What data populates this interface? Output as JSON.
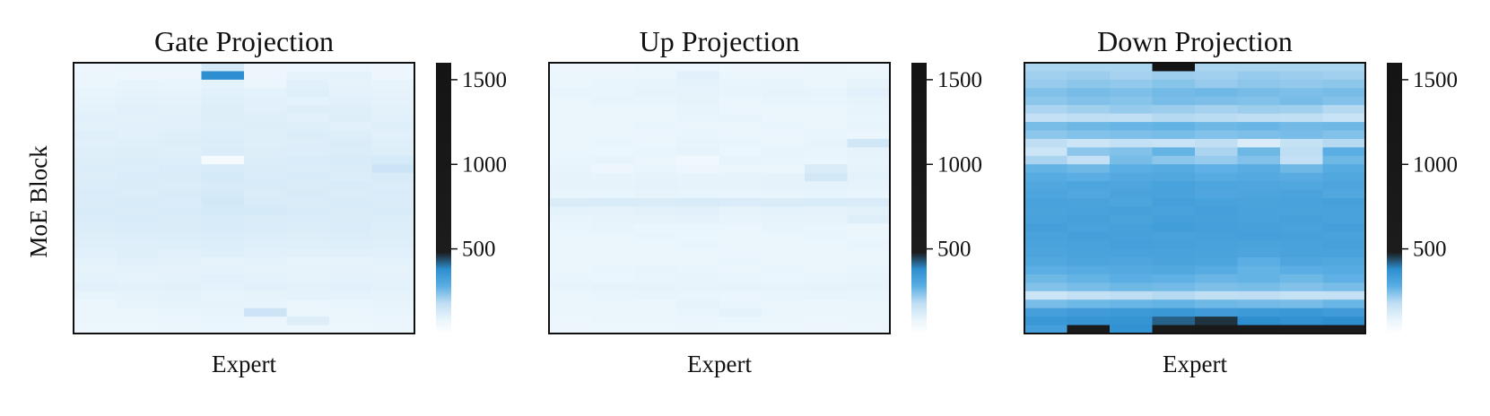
{
  "ylabel": "MoE Block",
  "colormap": {
    "stops": [
      {
        "value": 0,
        "color": "#ffffff"
      },
      {
        "value": 80,
        "color": "#eaf5fc"
      },
      {
        "value": 180,
        "color": "#bfdef3"
      },
      {
        "value": 280,
        "color": "#5aaee3"
      },
      {
        "value": 380,
        "color": "#2e8fd0"
      },
      {
        "value": 480,
        "color": "#1c1c1c"
      },
      {
        "value": 1600,
        "color": "#141414"
      }
    ]
  },
  "chart_data": [
    {
      "type": "heatmap",
      "title": "Gate Projection",
      "xlabel": "Expert",
      "ylabel": "MoE Block",
      "n_experts": 8,
      "n_blocks": 32,
      "colorbar": {
        "ticks": [
          500,
          1000,
          1500
        ],
        "range": [
          0,
          1600
        ]
      },
      "values": [
        [
          70,
          80,
          75,
          130,
          72,
          70,
          78,
          70
        ],
        [
          75,
          72,
          70,
          380,
          70,
          90,
          95,
          72
        ],
        [
          80,
          85,
          82,
          95,
          80,
          100,
          88,
          85
        ],
        [
          85,
          88,
          90,
          100,
          95,
          105,
          92,
          90
        ],
        [
          90,
          95,
          92,
          105,
          100,
          95,
          100,
          92
        ],
        [
          95,
          100,
          98,
          110,
          102,
          110,
          105,
          98
        ],
        [
          100,
          98,
          100,
          110,
          105,
          100,
          110,
          100
        ],
        [
          98,
          102,
          100,
          108,
          110,
          105,
          100,
          105
        ],
        [
          105,
          100,
          108,
          112,
          105,
          115,
          110,
          100
        ],
        [
          100,
          105,
          110,
          115,
          108,
          110,
          120,
          105
        ],
        [
          108,
          110,
          105,
          118,
          110,
          112,
          115,
          110
        ],
        [
          110,
          115,
          112,
          40,
          115,
          118,
          125,
          130
        ],
        [
          115,
          112,
          118,
          125,
          120,
          115,
          120,
          150
        ],
        [
          110,
          118,
          120,
          130,
          118,
          125,
          115,
          125
        ],
        [
          115,
          120,
          115,
          125,
          122,
          120,
          125,
          115
        ],
        [
          118,
          115,
          125,
          130,
          120,
          125,
          120,
          118
        ],
        [
          120,
          125,
          118,
          135,
          125,
          120,
          125,
          120
        ],
        [
          122,
          120,
          125,
          130,
          128,
          125,
          120,
          125
        ],
        [
          118,
          122,
          120,
          125,
          120,
          118,
          120,
          115
        ],
        [
          115,
          118,
          120,
          122,
          118,
          115,
          118,
          112
        ],
        [
          110,
          112,
          115,
          118,
          112,
          110,
          115,
          110
        ],
        [
          105,
          108,
          110,
          112,
          108,
          105,
          110,
          105
        ],
        [
          100,
          105,
          102,
          108,
          100,
          98,
          100,
          102
        ],
        [
          95,
          100,
          98,
          90,
          95,
          85,
          90,
          95
        ],
        [
          90,
          95,
          92,
          95,
          90,
          88,
          92,
          90
        ],
        [
          95,
          90,
          95,
          100,
          95,
          90,
          95,
          92
        ],
        [
          100,
          95,
          98,
          95,
          100,
          95,
          100,
          95
        ],
        [
          85,
          90,
          95,
          85,
          90,
          95,
          92,
          90
        ],
        [
          80,
          85,
          88,
          90,
          85,
          80,
          82,
          85
        ],
        [
          78,
          80,
          82,
          85,
          150,
          80,
          80,
          82
        ],
        [
          75,
          78,
          80,
          82,
          80,
          110,
          75,
          78
        ],
        [
          70,
          72,
          75,
          78,
          75,
          70,
          72,
          75
        ]
      ]
    },
    {
      "type": "heatmap",
      "title": "Up Projection",
      "xlabel": "Expert",
      "ylabel": "",
      "n_experts": 8,
      "n_blocks": 32,
      "colorbar": {
        "ticks": [
          500,
          1000,
          1500
        ],
        "range": [
          0,
          1600
        ]
      },
      "values": [
        [
          70,
          72,
          75,
          80,
          72,
          70,
          75,
          72
        ],
        [
          75,
          78,
          80,
          100,
          78,
          80,
          75,
          80
        ],
        [
          80,
          82,
          85,
          95,
          82,
          85,
          80,
          88
        ],
        [
          85,
          82,
          88,
          90,
          85,
          88,
          85,
          100
        ],
        [
          80,
          85,
          82,
          88,
          80,
          85,
          82,
          90
        ],
        [
          75,
          80,
          78,
          85,
          78,
          80,
          75,
          85
        ],
        [
          78,
          75,
          80,
          82,
          85,
          80,
          78,
          82
        ],
        [
          80,
          78,
          82,
          80,
          78,
          82,
          80,
          85
        ],
        [
          75,
          80,
          78,
          82,
          80,
          78,
          82,
          80
        ],
        [
          78,
          82,
          80,
          85,
          82,
          80,
          85,
          140
        ],
        [
          80,
          78,
          82,
          88,
          80,
          85,
          82,
          88
        ],
        [
          82,
          85,
          80,
          60,
          85,
          82,
          80,
          85
        ],
        [
          85,
          70,
          82,
          70,
          78,
          75,
          120,
          88
        ],
        [
          88,
          85,
          90,
          85,
          88,
          90,
          135,
          95
        ],
        [
          90,
          88,
          92,
          88,
          90,
          92,
          95,
          90
        ],
        [
          85,
          82,
          88,
          85,
          82,
          85,
          88,
          82
        ],
        [
          120,
          125,
          120,
          122,
          118,
          120,
          122,
          118
        ],
        [
          95,
          92,
          98,
          100,
          90,
          95,
          92,
          98
        ],
        [
          85,
          88,
          90,
          92,
          85,
          88,
          90,
          105
        ],
        [
          82,
          85,
          80,
          82,
          80,
          85,
          82,
          80
        ],
        [
          78,
          80,
          82,
          78,
          80,
          78,
          82,
          80
        ],
        [
          80,
          78,
          80,
          82,
          78,
          80,
          78,
          82
        ],
        [
          75,
          78,
          76,
          78,
          80,
          78,
          76,
          78
        ],
        [
          78,
          80,
          78,
          80,
          82,
          80,
          78,
          80
        ],
        [
          80,
          82,
          85,
          82,
          80,
          82,
          80,
          82
        ],
        [
          82,
          80,
          82,
          85,
          82,
          80,
          82,
          85
        ],
        [
          85,
          88,
          90,
          85,
          88,
          85,
          88,
          90
        ],
        [
          80,
          82,
          85,
          82,
          80,
          82,
          85,
          82
        ],
        [
          78,
          80,
          78,
          90,
          82,
          80,
          78,
          80
        ],
        [
          75,
          78,
          76,
          82,
          95,
          78,
          75,
          78
        ],
        [
          72,
          75,
          78,
          80,
          78,
          75,
          72,
          75
        ],
        [
          70,
          72,
          70,
          75,
          72,
          70,
          72,
          70
        ]
      ]
    },
    {
      "type": "heatmap",
      "title": "Down Projection",
      "xlabel": "Expert",
      "ylabel": "",
      "n_experts": 8,
      "n_blocks": 32,
      "colorbar": {
        "ticks": [
          500,
          1000,
          1500
        ],
        "range": [
          0,
          1600
        ]
      },
      "values": [
        [
          200,
          200,
          200,
          1550,
          200,
          200,
          200,
          200
        ],
        [
          210,
          215,
          205,
          215,
          210,
          220,
          215,
          210
        ],
        [
          220,
          230,
          225,
          235,
          220,
          230,
          225,
          230
        ],
        [
          240,
          250,
          245,
          255,
          260,
          250,
          245,
          250
        ],
        [
          230,
          240,
          235,
          250,
          245,
          240,
          250,
          240
        ],
        [
          200,
          210,
          220,
          215,
          205,
          215,
          210,
          190
        ],
        [
          170,
          180,
          175,
          190,
          185,
          180,
          175,
          160
        ],
        [
          250,
          260,
          265,
          270,
          260,
          265,
          255,
          260
        ],
        [
          230,
          240,
          245,
          250,
          240,
          245,
          250,
          240
        ],
        [
          180,
          150,
          170,
          160,
          175,
          120,
          165,
          190
        ],
        [
          150,
          230,
          240,
          270,
          200,
          260,
          180,
          280
        ],
        [
          200,
          170,
          250,
          230,
          220,
          240,
          170,
          260
        ],
        [
          270,
          260,
          280,
          290,
          275,
          285,
          260,
          290
        ],
        [
          290,
          280,
          295,
          300,
          290,
          295,
          285,
          300
        ],
        [
          300,
          310,
          305,
          320,
          310,
          305,
          300,
          310
        ],
        [
          310,
          300,
          315,
          320,
          305,
          310,
          315,
          300
        ],
        [
          320,
          315,
          310,
          330,
          320,
          315,
          320,
          325
        ],
        [
          315,
          320,
          325,
          320,
          330,
          320,
          315,
          320
        ],
        [
          320,
          325,
          315,
          330,
          325,
          320,
          325,
          320
        ],
        [
          330,
          320,
          325,
          335,
          330,
          325,
          320,
          330
        ],
        [
          320,
          330,
          325,
          320,
          325,
          330,
          325,
          320
        ],
        [
          315,
          320,
          330,
          325,
          320,
          315,
          320,
          325
        ],
        [
          310,
          315,
          320,
          320,
          315,
          310,
          315,
          320
        ],
        [
          300,
          310,
          305,
          315,
          310,
          280,
          305,
          300
        ],
        [
          280,
          290,
          295,
          300,
          290,
          270,
          280,
          290
        ],
        [
          260,
          270,
          280,
          275,
          265,
          270,
          260,
          275
        ],
        [
          240,
          250,
          260,
          255,
          245,
          250,
          240,
          250
        ],
        [
          150,
          170,
          180,
          190,
          175,
          180,
          165,
          170
        ],
        [
          250,
          260,
          265,
          270,
          260,
          255,
          250,
          265
        ],
        [
          330,
          340,
          345,
          350,
          340,
          345,
          350,
          340
        ],
        [
          350,
          360,
          365,
          420,
          460,
          380,
          370,
          380
        ],
        [
          330,
          700,
          370,
          720,
          850,
          760,
          600,
          650
        ]
      ]
    }
  ]
}
